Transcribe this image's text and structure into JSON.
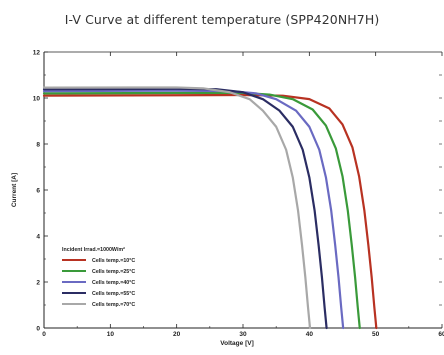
{
  "title": "I-V Curve at different temperature (SPP420NH7H)",
  "chart_data": {
    "type": "line",
    "title": "I-V Curve at different temperature (SPP420NH7H)",
    "xlabel": "Voltage [V]",
    "ylabel": "Current [A]",
    "xlim": [
      0,
      60
    ],
    "ylim": [
      0,
      12
    ],
    "xticks": [
      0,
      10,
      20,
      30,
      40,
      50,
      60
    ],
    "yticks": [
      0,
      2,
      4,
      6,
      8,
      10,
      12
    ],
    "grid": false,
    "legend_position": "lower-left",
    "legend_title": "Incident Irrad.=1000W/m²",
    "series": [
      {
        "name": "Cells temp.=10°C",
        "color": "#b83222",
        "x": [
          0,
          20,
          30,
          36,
          40,
          43,
          45,
          46.5,
          47.5,
          48.3,
          48.9,
          49.4,
          49.8,
          50.1
        ],
        "y": [
          10.1,
          10.12,
          10.13,
          10.1,
          9.95,
          9.55,
          8.85,
          7.85,
          6.6,
          5.1,
          3.6,
          2.2,
          0.9,
          0
        ]
      },
      {
        "name": "Cells temp.=25°C",
        "color": "#3a9a3a",
        "x": [
          0,
          20,
          30,
          34,
          37.5,
          40.5,
          42.5,
          44,
          45,
          45.8,
          46.4,
          46.9,
          47.3,
          47.6
        ],
        "y": [
          10.2,
          10.22,
          10.22,
          10.15,
          9.95,
          9.5,
          8.8,
          7.8,
          6.6,
          5.1,
          3.6,
          2.2,
          0.9,
          0
        ]
      },
      {
        "name": "Cells temp.=40°C",
        "color": "#6a6ac2",
        "x": [
          0,
          20,
          28,
          32,
          35,
          38,
          40,
          41.5,
          42.5,
          43.3,
          43.9,
          44.4,
          44.8,
          45.1
        ],
        "y": [
          10.3,
          10.32,
          10.3,
          10.2,
          9.95,
          9.45,
          8.75,
          7.75,
          6.55,
          5.1,
          3.6,
          2.2,
          0.9,
          0
        ]
      },
      {
        "name": "Cells temp.=55°C",
        "color": "#2b2d63",
        "x": [
          0,
          20,
          26,
          30,
          33,
          35.5,
          37.5,
          39,
          40,
          40.8,
          41.4,
          41.9,
          42.3,
          42.6
        ],
        "y": [
          10.38,
          10.4,
          10.38,
          10.25,
          9.95,
          9.45,
          8.75,
          7.75,
          6.55,
          5.1,
          3.6,
          2.2,
          0.9,
          0
        ]
      },
      {
        "name": "Cells temp.=70°C",
        "color": "#a8a8a8",
        "x": [
          0,
          20,
          24,
          28,
          31,
          33,
          35,
          36.5,
          37.5,
          38.3,
          38.9,
          39.4,
          39.8,
          40.1
        ],
        "y": [
          10.45,
          10.46,
          10.42,
          10.25,
          9.95,
          9.45,
          8.75,
          7.75,
          6.55,
          5.1,
          3.6,
          2.2,
          0.9,
          0
        ]
      }
    ]
  }
}
